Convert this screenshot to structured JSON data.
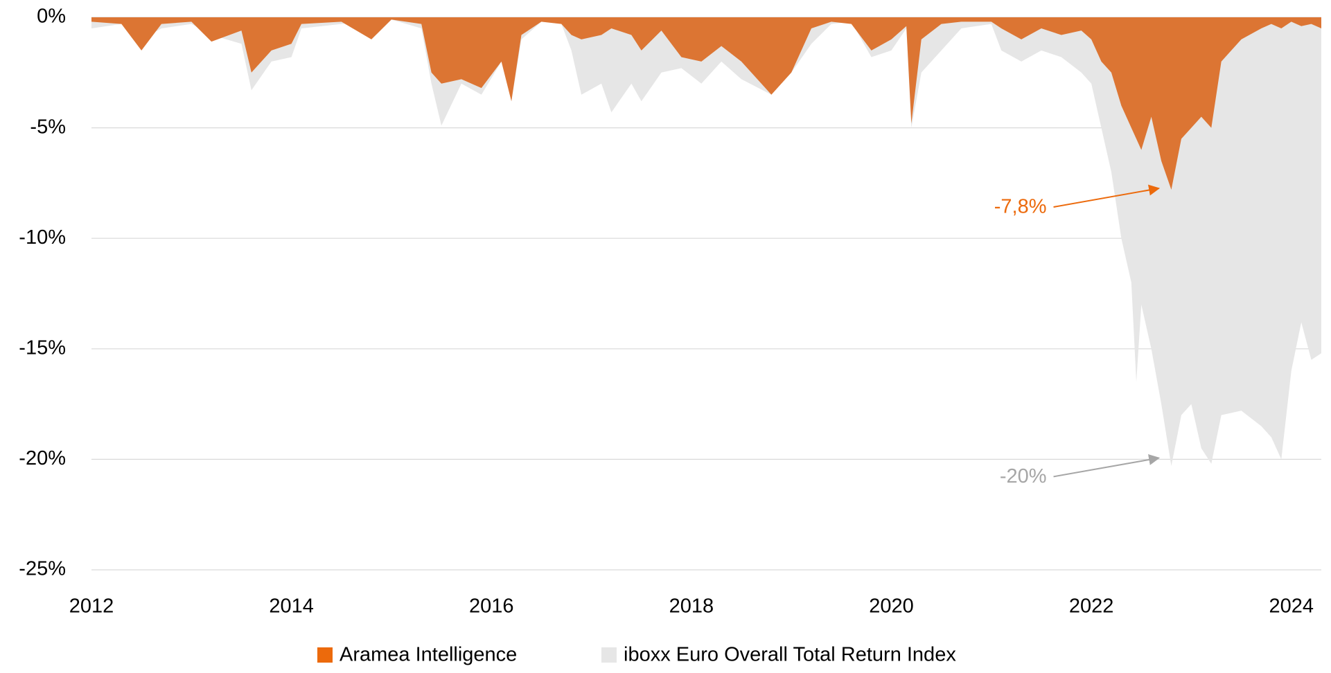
{
  "chart_data": {
    "type": "area",
    "x": [
      2012.0,
      2012.3,
      2012.5,
      2012.7,
      2013.0,
      2013.2,
      2013.5,
      2013.6,
      2013.8,
      2014.0,
      2014.1,
      2014.5,
      2014.8,
      2015.0,
      2015.3,
      2015.4,
      2015.5,
      2015.7,
      2015.9,
      2016.1,
      2016.2,
      2016.3,
      2016.5,
      2016.7,
      2016.8,
      2016.9,
      2017.1,
      2017.2,
      2017.4,
      2017.5,
      2017.7,
      2017.9,
      2018.1,
      2018.3,
      2018.5,
      2018.8,
      2019.0,
      2019.2,
      2019.4,
      2019.6,
      2019.8,
      2020.0,
      2020.15,
      2020.2,
      2020.3,
      2020.5,
      2020.7,
      2021.0,
      2021.1,
      2021.3,
      2021.5,
      2021.7,
      2021.9,
      2022.0,
      2022.1,
      2022.2,
      2022.3,
      2022.4,
      2022.45,
      2022.5,
      2022.6,
      2022.7,
      2022.8,
      2022.9,
      2023.0,
      2023.1,
      2023.2,
      2023.3,
      2023.5,
      2023.7,
      2023.8,
      2023.9,
      2024.0,
      2024.1,
      2024.2,
      2024.3
    ],
    "series": [
      {
        "name": "Aramea Intelligence",
        "color": "#dc7533",
        "legend_color": "#ec6a0c",
        "values": [
          -0.2,
          -0.3,
          -1.5,
          -0.3,
          -0.2,
          -1.1,
          -0.6,
          -2.5,
          -1.5,
          -1.2,
          -0.3,
          -0.2,
          -1.0,
          -0.1,
          -0.3,
          -2.5,
          -3.0,
          -2.8,
          -3.2,
          -2.0,
          -3.8,
          -0.8,
          -0.2,
          -0.3,
          -0.8,
          -1.0,
          -0.8,
          -0.5,
          -0.8,
          -1.5,
          -0.6,
          -1.8,
          -2.0,
          -1.3,
          -2.0,
          -3.5,
          -2.5,
          -0.5,
          -0.2,
          -0.3,
          -1.5,
          -1.0,
          -0.4,
          -4.8,
          -1.0,
          -0.3,
          -0.2,
          -0.2,
          -0.5,
          -1.0,
          -0.5,
          -0.8,
          -0.6,
          -1.0,
          -2.0,
          -2.5,
          -4.0,
          -5.0,
          -5.5,
          -6.0,
          -4.5,
          -6.5,
          -7.8,
          -5.5,
          -5.0,
          -4.5,
          -5.0,
          -2.0,
          -1.0,
          -0.5,
          -0.3,
          -0.5,
          -0.2,
          -0.4,
          -0.3,
          -0.5
        ]
      },
      {
        "name": "iboxx Euro Overall Total Return Index",
        "color": "#e6e6e6",
        "legend_color": "#e6e6e6",
        "values": [
          -0.5,
          -0.3,
          -1.0,
          -0.5,
          -0.3,
          -0.8,
          -1.2,
          -3.3,
          -2.0,
          -1.8,
          -0.5,
          -0.3,
          -0.2,
          -0.1,
          -0.5,
          -3.0,
          -4.9,
          -3.0,
          -3.5,
          -2.0,
          -3.8,
          -1.0,
          -0.2,
          -0.3,
          -1.5,
          -3.5,
          -3.0,
          -4.3,
          -3.0,
          -3.8,
          -2.5,
          -2.3,
          -3.0,
          -2.0,
          -2.8,
          -3.5,
          -2.5,
          -1.2,
          -0.3,
          -0.2,
          -1.8,
          -1.5,
          -0.5,
          -5.0,
          -2.5,
          -1.5,
          -0.5,
          -0.3,
          -1.5,
          -2.0,
          -1.5,
          -1.8,
          -2.5,
          -3.0,
          -5.0,
          -7.0,
          -10.0,
          -12.0,
          -16.5,
          -13.0,
          -15.0,
          -17.5,
          -20.3,
          -18.0,
          -17.5,
          -19.5,
          -20.2,
          -18.0,
          -17.8,
          -18.5,
          -19.0,
          -20.0,
          -16.0,
          -13.8,
          -15.5,
          -15.2
        ]
      }
    ],
    "xlim": [
      2012,
      2024.3
    ],
    "xticks": [
      2012,
      2014,
      2016,
      2018,
      2020,
      2022,
      2024
    ],
    "ylim": [
      -25,
      0
    ],
    "yticks": [
      {
        "value": 0,
        "label": "0%"
      },
      {
        "value": -5,
        "label": "-5%"
      },
      {
        "value": -10,
        "label": "-10%"
      },
      {
        "value": -15,
        "label": "-15%"
      },
      {
        "value": -20,
        "label": "-20%"
      },
      {
        "value": -25,
        "label": "-25%"
      }
    ],
    "grid": true,
    "legend": "bottom",
    "annotations": [
      {
        "text": "-7,8%",
        "x": 2022.8,
        "y": -7.8,
        "color": "#ec6a0c"
      },
      {
        "text": "-20%",
        "x": 2022.8,
        "y": -20,
        "color": "#a6a6a6"
      }
    ]
  }
}
